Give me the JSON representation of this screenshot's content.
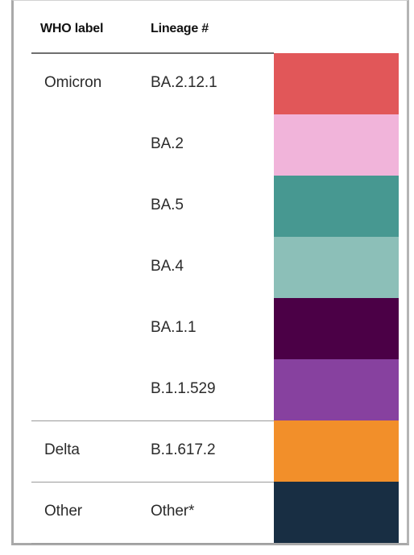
{
  "chart_data": {
    "type": "table",
    "columns": [
      "WHO label",
      "Lineage #",
      ""
    ],
    "rows": [
      {
        "who": "Omicron",
        "lineage": "BA.2.12.1",
        "color": "#e15759"
      },
      {
        "who": "",
        "lineage": "BA.2",
        "color": "#f1b4da"
      },
      {
        "who": "",
        "lineage": "BA.5",
        "color": "#479891"
      },
      {
        "who": "",
        "lineage": "BA.4",
        "color": "#8cbfb8"
      },
      {
        "who": "",
        "lineage": "BA.1.1",
        "color": "#4b0046"
      },
      {
        "who": "",
        "lineage": "B.1.1.529",
        "color": "#87419f"
      },
      {
        "who": "Delta",
        "lineage": "B.1.617.2",
        "color": "#f28f2a"
      },
      {
        "who": "Other",
        "lineage": "Other*",
        "color": "#182e43"
      }
    ],
    "group_breaks_after": [
      5,
      6
    ],
    "grid": false,
    "legend": "none"
  }
}
